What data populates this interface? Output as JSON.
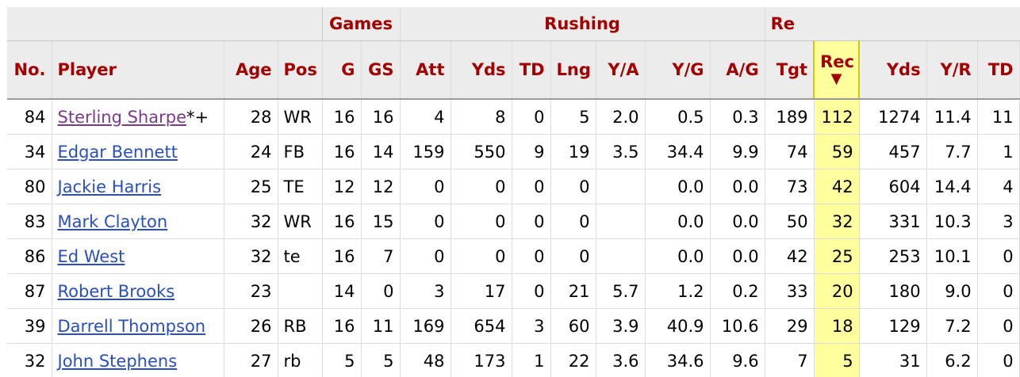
{
  "groups": {
    "games": "Games",
    "rushing": "Rushing",
    "receiving": "Re"
  },
  "headers": {
    "no": "No.",
    "player": "Player",
    "age": "Age",
    "pos": "Pos",
    "g": "G",
    "gs": "GS",
    "att": "Att",
    "rush_yds": "Yds",
    "rush_td": "TD",
    "lng": "Lng",
    "ya": "Y/A",
    "yg": "Y/G",
    "ag": "A/G",
    "tgt": "Tgt",
    "rec": "Rec",
    "rec_yds": "Yds",
    "yr": "Y/R",
    "rec_td": "TD"
  },
  "sort_indicator": "▼",
  "rows": [
    {
      "no": "84",
      "player": "Sterling Sharpe",
      "suffix": "*+",
      "visited": true,
      "age": "28",
      "pos": "WR",
      "g": "16",
      "gs": "16",
      "att": "4",
      "rush_yds": "8",
      "rush_td": "0",
      "lng": "5",
      "ya": "2.0",
      "yg": "0.5",
      "ag": "0.3",
      "tgt": "189",
      "rec": "112",
      "rec_yds": "1274",
      "yr": "11.4",
      "rec_td": "11"
    },
    {
      "no": "34",
      "player": "Edgar Bennett",
      "suffix": "",
      "visited": false,
      "age": "24",
      "pos": "FB",
      "g": "16",
      "gs": "14",
      "att": "159",
      "rush_yds": "550",
      "rush_td": "9",
      "lng": "19",
      "ya": "3.5",
      "yg": "34.4",
      "ag": "9.9",
      "tgt": "74",
      "rec": "59",
      "rec_yds": "457",
      "yr": "7.7",
      "rec_td": "1"
    },
    {
      "no": "80",
      "player": "Jackie Harris",
      "suffix": "",
      "visited": false,
      "age": "25",
      "pos": "TE",
      "g": "12",
      "gs": "12",
      "att": "0",
      "rush_yds": "0",
      "rush_td": "0",
      "lng": "0",
      "ya": "",
      "yg": "0.0",
      "ag": "0.0",
      "tgt": "73",
      "rec": "42",
      "rec_yds": "604",
      "yr": "14.4",
      "rec_td": "4"
    },
    {
      "no": "83",
      "player": "Mark Clayton",
      "suffix": "",
      "visited": false,
      "age": "32",
      "pos": "WR",
      "g": "16",
      "gs": "15",
      "att": "0",
      "rush_yds": "0",
      "rush_td": "0",
      "lng": "0",
      "ya": "",
      "yg": "0.0",
      "ag": "0.0",
      "tgt": "50",
      "rec": "32",
      "rec_yds": "331",
      "yr": "10.3",
      "rec_td": "3"
    },
    {
      "no": "86",
      "player": "Ed West",
      "suffix": "",
      "visited": false,
      "age": "32",
      "pos": "te",
      "g": "16",
      "gs": "7",
      "att": "0",
      "rush_yds": "0",
      "rush_td": "0",
      "lng": "0",
      "ya": "",
      "yg": "0.0",
      "ag": "0.0",
      "tgt": "42",
      "rec": "25",
      "rec_yds": "253",
      "yr": "10.1",
      "rec_td": "0"
    },
    {
      "no": "87",
      "player": "Robert Brooks",
      "suffix": "",
      "visited": false,
      "age": "23",
      "pos": "",
      "g": "14",
      "gs": "0",
      "att": "3",
      "rush_yds": "17",
      "rush_td": "0",
      "lng": "21",
      "ya": "5.7",
      "yg": "1.2",
      "ag": "0.2",
      "tgt": "33",
      "rec": "20",
      "rec_yds": "180",
      "yr": "9.0",
      "rec_td": "0"
    },
    {
      "no": "39",
      "player": "Darrell Thompson",
      "suffix": "",
      "visited": false,
      "age": "26",
      "pos": "RB",
      "g": "16",
      "gs": "11",
      "att": "169",
      "rush_yds": "654",
      "rush_td": "3",
      "lng": "60",
      "ya": "3.9",
      "yg": "40.9",
      "ag": "10.6",
      "tgt": "29",
      "rec": "18",
      "rec_yds": "129",
      "yr": "7.2",
      "rec_td": "0"
    },
    {
      "no": "32",
      "player": "John Stephens",
      "suffix": "",
      "visited": false,
      "age": "27",
      "pos": "rb",
      "g": "5",
      "gs": "5",
      "att": "48",
      "rush_yds": "173",
      "rush_td": "1",
      "lng": "22",
      "ya": "3.6",
      "yg": "34.6",
      "ag": "9.6",
      "tgt": "7",
      "rec": "5",
      "rec_yds": "31",
      "yr": "6.2",
      "rec_td": "0"
    }
  ]
}
